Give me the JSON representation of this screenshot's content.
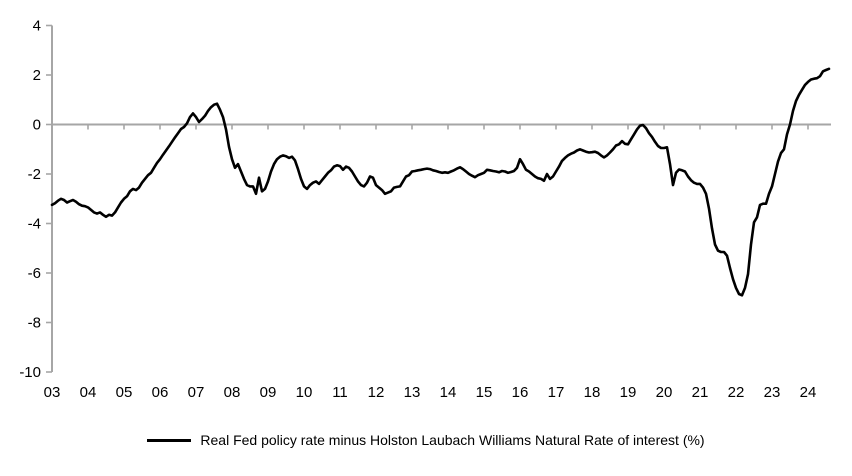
{
  "chart_data": {
    "type": "line",
    "title": "",
    "xlabel": "",
    "ylabel": "",
    "frequency": "monthly",
    "x_start": "2003-01",
    "x_end": "2024-08",
    "xlim_years": [
      2003.0,
      2024.67
    ],
    "ylim": [
      -10,
      4
    ],
    "y_ticks": [
      4,
      2,
      0,
      -2,
      -4,
      -6,
      -8,
      -10
    ],
    "y_tick_labels": [
      "4",
      "2",
      "0",
      "-2",
      "-4",
      "-6",
      "-8",
      "-10"
    ],
    "x_tick_labels": [
      "03",
      "04",
      "05",
      "06",
      "07",
      "08",
      "09",
      "10",
      "11",
      "12",
      "13",
      "14",
      "15",
      "16",
      "17",
      "18",
      "19",
      "20",
      "21",
      "22",
      "23",
      "24"
    ],
    "grid": "horizontal-zero-line-only",
    "legend_position": "bottom-center",
    "axis_color": "#a6a6a6",
    "text_color": "#000000",
    "background": "#ffffff",
    "series": [
      {
        "name": "Real Fed policy rate minus Holston Laubach Williams Natural Rate of interest (%)",
        "color": "#000000",
        "values": [
          -3.25,
          -3.18,
          -3.08,
          -3.0,
          -3.05,
          -3.15,
          -3.1,
          -3.05,
          -3.12,
          -3.22,
          -3.28,
          -3.3,
          -3.35,
          -3.45,
          -3.55,
          -3.6,
          -3.55,
          -3.65,
          -3.73,
          -3.65,
          -3.68,
          -3.55,
          -3.35,
          -3.15,
          -3.0,
          -2.9,
          -2.7,
          -2.6,
          -2.65,
          -2.55,
          -2.35,
          -2.2,
          -2.05,
          -1.95,
          -1.75,
          -1.55,
          -1.4,
          -1.22,
          -1.05,
          -0.88,
          -0.7,
          -0.52,
          -0.35,
          -0.18,
          -0.1,
          0.05,
          0.3,
          0.45,
          0.3,
          0.1,
          0.22,
          0.35,
          0.55,
          0.7,
          0.8,
          0.84,
          0.6,
          0.3,
          -0.2,
          -0.9,
          -1.4,
          -1.75,
          -1.6,
          -1.9,
          -2.2,
          -2.45,
          -2.5,
          -2.5,
          -2.8,
          -2.15,
          -2.7,
          -2.6,
          -2.3,
          -1.9,
          -1.6,
          -1.4,
          -1.3,
          -1.25,
          -1.28,
          -1.35,
          -1.3,
          -1.45,
          -1.8,
          -2.2,
          -2.5,
          -2.6,
          -2.45,
          -2.35,
          -2.3,
          -2.4,
          -2.25,
          -2.1,
          -1.95,
          -1.85,
          -1.7,
          -1.65,
          -1.68,
          -1.83,
          -1.7,
          -1.75,
          -1.9,
          -2.1,
          -2.3,
          -2.45,
          -2.5,
          -2.35,
          -2.1,
          -2.15,
          -2.45,
          -2.55,
          -2.65,
          -2.8,
          -2.75,
          -2.7,
          -2.55,
          -2.52,
          -2.5,
          -2.3,
          -2.1,
          -2.05,
          -1.9,
          -1.88,
          -1.85,
          -1.83,
          -1.8,
          -1.78,
          -1.8,
          -1.85,
          -1.88,
          -1.92,
          -1.95,
          -1.93,
          -1.95,
          -1.9,
          -1.85,
          -1.78,
          -1.73,
          -1.8,
          -1.9,
          -2.0,
          -2.07,
          -2.13,
          -2.05,
          -2.0,
          -1.95,
          -1.83,
          -1.85,
          -1.88,
          -1.9,
          -1.93,
          -1.88,
          -1.9,
          -1.95,
          -1.92,
          -1.88,
          -1.75,
          -1.4,
          -1.6,
          -1.83,
          -1.9,
          -2.0,
          -2.1,
          -2.17,
          -2.2,
          -2.27,
          -2.0,
          -2.2,
          -2.1,
          -1.9,
          -1.7,
          -1.47,
          -1.35,
          -1.25,
          -1.18,
          -1.13,
          -1.05,
          -1.0,
          -1.05,
          -1.1,
          -1.13,
          -1.12,
          -1.1,
          -1.15,
          -1.25,
          -1.33,
          -1.25,
          -1.13,
          -1.0,
          -0.85,
          -0.8,
          -0.67,
          -0.78,
          -0.8,
          -0.6,
          -0.4,
          -0.2,
          -0.05,
          -0.02,
          -0.15,
          -0.35,
          -0.5,
          -0.7,
          -0.87,
          -0.95,
          -0.95,
          -0.92,
          -1.6,
          -2.45,
          -1.95,
          -1.82,
          -1.85,
          -1.9,
          -2.1,
          -2.25,
          -2.35,
          -2.4,
          -2.4,
          -2.55,
          -2.8,
          -3.4,
          -4.2,
          -4.85,
          -5.1,
          -5.15,
          -5.15,
          -5.3,
          -5.8,
          -6.25,
          -6.6,
          -6.85,
          -6.9,
          -6.6,
          -6.05,
          -4.85,
          -3.95,
          -3.75,
          -3.25,
          -3.2,
          -3.2,
          -2.8,
          -2.5,
          -2.0,
          -1.5,
          -1.15,
          -1.0,
          -0.4,
          0.0,
          0.55,
          0.95,
          1.2,
          1.4,
          1.6,
          1.72,
          1.82,
          1.85,
          1.87,
          1.95,
          2.15,
          2.2,
          2.25
        ]
      }
    ]
  }
}
